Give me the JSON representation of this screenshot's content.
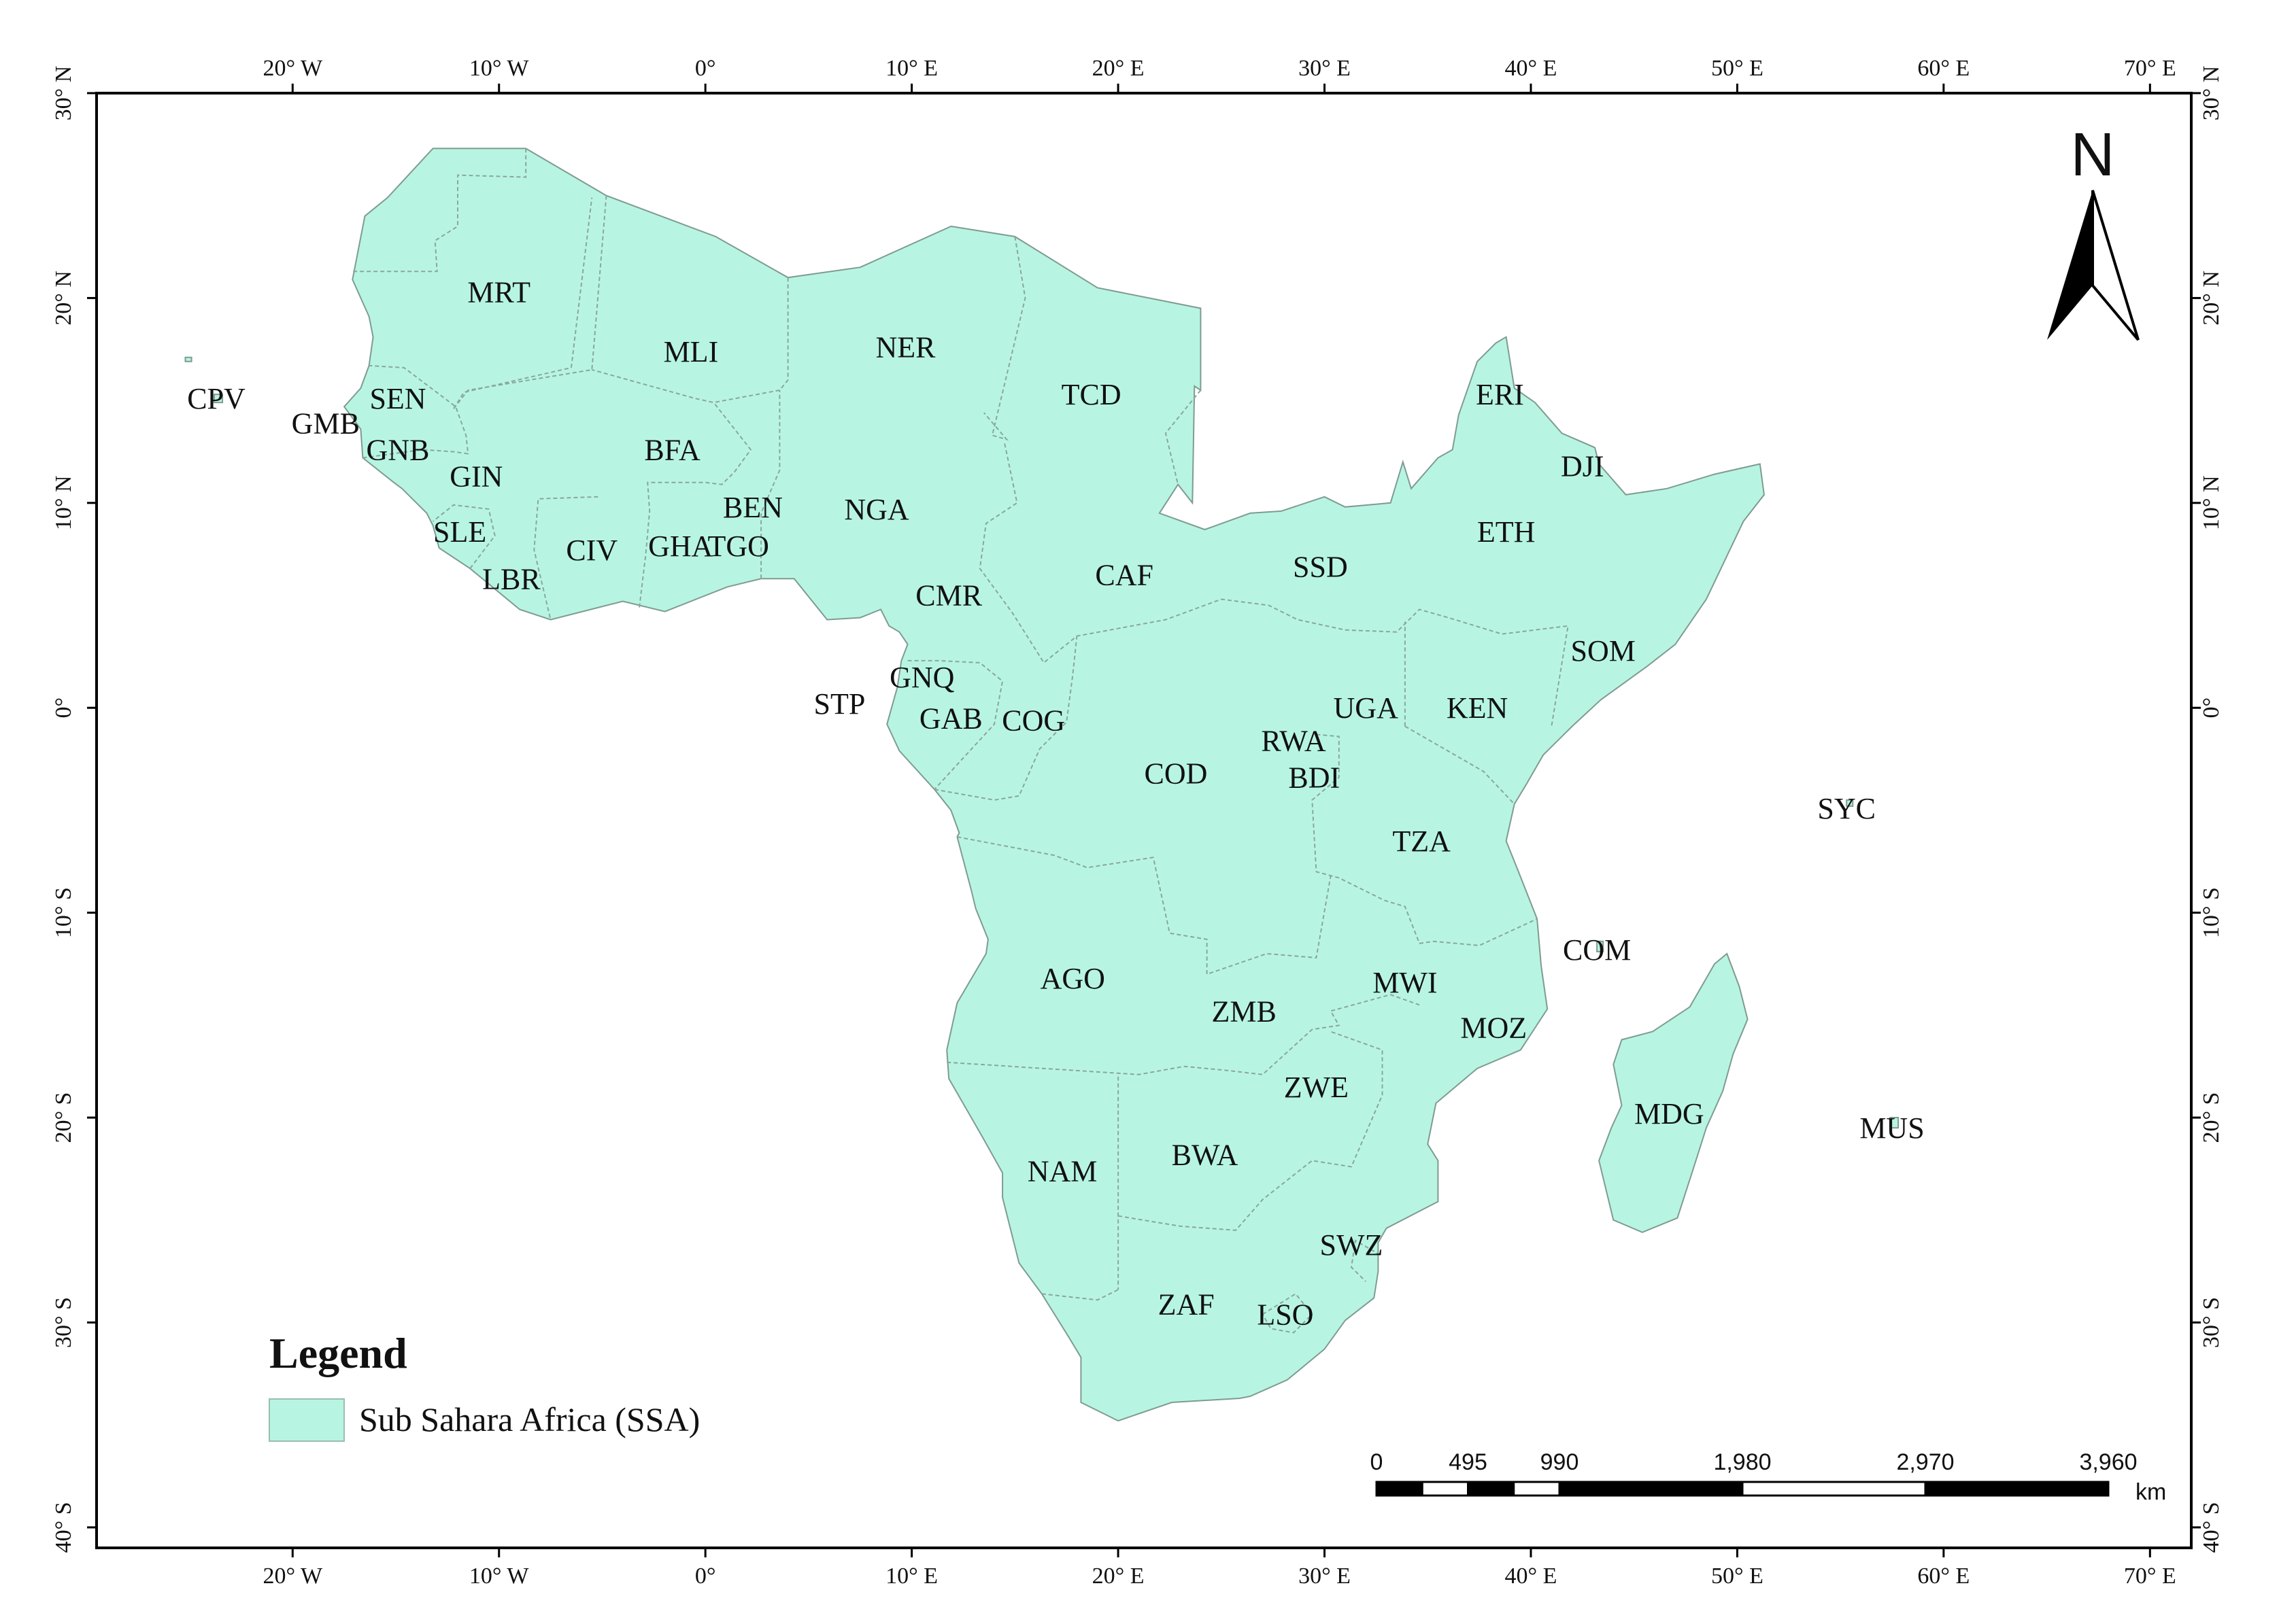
{
  "map": {
    "lon_range": [
      -29.5,
      72
    ],
    "lat_range": [
      -41,
      30
    ],
    "colors": {
      "land": "#b7f5e2",
      "frame": "#000000",
      "background": "#ffffff"
    },
    "lon_ticks": [
      {
        "value": -20,
        "label": "20° W"
      },
      {
        "value": -10,
        "label": "10° W"
      },
      {
        "value": 0,
        "label": "0°"
      },
      {
        "value": 10,
        "label": "10° E"
      },
      {
        "value": 20,
        "label": "20° E"
      },
      {
        "value": 30,
        "label": "30° E"
      },
      {
        "value": 40,
        "label": "40° E"
      },
      {
        "value": 50,
        "label": "50° E"
      },
      {
        "value": 60,
        "label": "60° E"
      },
      {
        "value": 70,
        "label": "70° E"
      }
    ],
    "lat_ticks": [
      {
        "value": 30,
        "label": "30° N"
      },
      {
        "value": 20,
        "label": "20° N"
      },
      {
        "value": 10,
        "label": "10° N"
      },
      {
        "value": 0,
        "label": "0°"
      },
      {
        "value": -10,
        "label": "10° S"
      },
      {
        "value": -20,
        "label": "20° S"
      },
      {
        "value": -30,
        "label": "30° S"
      },
      {
        "value": -40,
        "label": "40° S"
      }
    ],
    "countries": [
      {
        "code": "MRT",
        "lon": -10,
        "lat": 20.3
      },
      {
        "code": "MLI",
        "lon": -0.7,
        "lat": 17.4
      },
      {
        "code": "NER",
        "lon": 9.7,
        "lat": 17.6
      },
      {
        "code": "TCD",
        "lon": 18.7,
        "lat": 15.3
      },
      {
        "code": "CPV",
        "lon": -23.7,
        "lat": 15.1
      },
      {
        "code": "SEN",
        "lon": -14.9,
        "lat": 15.1
      },
      {
        "code": "GMB",
        "lon": -18.4,
        "lat": 13.9
      },
      {
        "code": "GNB",
        "lon": -14.9,
        "lat": 12.6
      },
      {
        "code": "GIN",
        "lon": -11.1,
        "lat": 11.3
      },
      {
        "code": "BFA",
        "lon": -1.6,
        "lat": 12.6
      },
      {
        "code": "BEN",
        "lon": 2.3,
        "lat": 9.8
      },
      {
        "code": "NGA",
        "lon": 8.3,
        "lat": 9.7
      },
      {
        "code": "SLE",
        "lon": -11.9,
        "lat": 8.6
      },
      {
        "code": "CIV",
        "lon": -5.5,
        "lat": 7.7
      },
      {
        "code": "GHA",
        "lon": -1.2,
        "lat": 7.9
      },
      {
        "code": "TGO",
        "lon": 1.6,
        "lat": 7.9
      },
      {
        "code": "LBR",
        "lon": -9.4,
        "lat": 6.3
      },
      {
        "code": "CMR",
        "lon": 11.8,
        "lat": 5.5
      },
      {
        "code": "CAF",
        "lon": 20.3,
        "lat": 6.5
      },
      {
        "code": "SSD",
        "lon": 29.8,
        "lat": 6.9
      },
      {
        "code": "ERI",
        "lon": 38.5,
        "lat": 15.3
      },
      {
        "code": "DJI",
        "lon": 42.5,
        "lat": 11.8
      },
      {
        "code": "ETH",
        "lon": 38.8,
        "lat": 8.6
      },
      {
        "code": "SOM",
        "lon": 43.5,
        "lat": 2.8
      },
      {
        "code": "GNQ",
        "lon": 10.5,
        "lat": 1.5
      },
      {
        "code": "STP",
        "lon": 6.5,
        "lat": 0.2
      },
      {
        "code": "GAB",
        "lon": 11.9,
        "lat": -0.5
      },
      {
        "code": "COG",
        "lon": 15.9,
        "lat": -0.6
      },
      {
        "code": "UGA",
        "lon": 32,
        "lat": 0
      },
      {
        "code": "KEN",
        "lon": 37.4,
        "lat": 0
      },
      {
        "code": "RWA",
        "lon": 28.5,
        "lat": -1.6
      },
      {
        "code": "BDI",
        "lon": 29.5,
        "lat": -3.4
      },
      {
        "code": "COD",
        "lon": 22.8,
        "lat": -3.2
      },
      {
        "code": "SYC",
        "lon": 55.3,
        "lat": -4.9
      },
      {
        "code": "TZA",
        "lon": 34.7,
        "lat": -6.5
      },
      {
        "code": "COM",
        "lon": 43.2,
        "lat": -11.8
      },
      {
        "code": "AGO",
        "lon": 17.8,
        "lat": -13.2
      },
      {
        "code": "MWI",
        "lon": 33.9,
        "lat": -13.4
      },
      {
        "code": "ZMB",
        "lon": 26.1,
        "lat": -14.8
      },
      {
        "code": "MOZ",
        "lon": 38.2,
        "lat": -15.6
      },
      {
        "code": "ZWE",
        "lon": 29.6,
        "lat": -18.5
      },
      {
        "code": "MDG",
        "lon": 46.7,
        "lat": -19.8
      },
      {
        "code": "MUS",
        "lon": 57.5,
        "lat": -20.5
      },
      {
        "code": "BWA",
        "lon": 24.2,
        "lat": -21.8
      },
      {
        "code": "NAM",
        "lon": 17.3,
        "lat": -22.6
      },
      {
        "code": "SWZ",
        "lon": 31.3,
        "lat": -26.2
      },
      {
        "code": "ZAF",
        "lon": 23.3,
        "lat": -29.1
      },
      {
        "code": "LSO",
        "lon": 28.1,
        "lat": -29.6
      }
    ]
  },
  "legend": {
    "title": "Legend",
    "item_label": "Sub Sahara Africa (SSA)",
    "item_color": "#b7f5e2"
  },
  "scale_bar": {
    "unit": "km",
    "labels": [
      "0",
      "495",
      "990",
      "1,980",
      "2,970",
      "3,960"
    ],
    "ticks_km": [
      0,
      495,
      990,
      1980,
      2970,
      3960
    ]
  },
  "north_arrow": {
    "label": "N"
  }
}
